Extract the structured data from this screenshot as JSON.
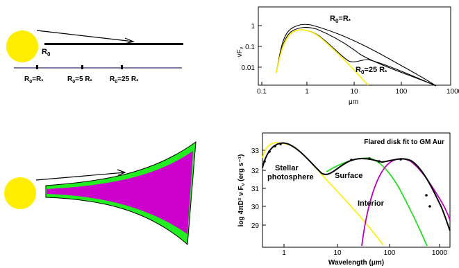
{
  "top_left": {
    "r0_label": "R",
    "r0_sub": "0",
    "markers": [
      {
        "main": "R",
        "sub": "0",
        "rest": "=R",
        "sub2": "*"
      },
      {
        "main": "R",
        "sub": "0",
        "rest": "=5 R",
        "sub2": "*"
      },
      {
        "main": "R",
        "sub": "0",
        "rest": "=25 R",
        "sub2": "*"
      }
    ],
    "colors": {
      "star": "#ffee00",
      "scale_line": "#2a2a6e",
      "disk": "#000000"
    }
  },
  "top_right": {
    "ylabel_main": "νF",
    "ylabel_sub": "ν",
    "xlabel": "μm",
    "y_ticks": [
      "1",
      "0.1",
      "0.01"
    ],
    "x_ticks": [
      "0.1",
      "1",
      "10",
      "100",
      "1000"
    ],
    "annotations": [
      {
        "main": "R",
        "sub": "0",
        "rest": "=R",
        "sub2": "*"
      },
      {
        "main": "R",
        "sub": "0",
        "rest": "=25 R",
        "sub2": "*"
      }
    ]
  },
  "bottom_left": {
    "colors": {
      "star": "#ffee00",
      "surface": "#22ee22",
      "interior": "#cc00cc"
    }
  },
  "bottom_right": {
    "title": "Flared disk fit to GM Aur",
    "ylabel": "log 4πD² ν F",
    "ylabel_sub": "ν",
    "ylabel_units": "(erg s⁻¹)",
    "xlabel": "Wavelength (μm)",
    "y_ticks": [
      "33",
      "32",
      "31",
      "30",
      "29"
    ],
    "x_ticks": [
      "1",
      "10",
      "100",
      "1000"
    ],
    "labels": {
      "photosphere_1": "Stellar",
      "photosphere_2": "photosphere",
      "surface": "Surface",
      "interior": "Interior"
    },
    "colors": {
      "photosphere": "#ffee00",
      "surface": "#22dd22",
      "interior": "#bb00bb",
      "total": "#000000"
    }
  }
}
